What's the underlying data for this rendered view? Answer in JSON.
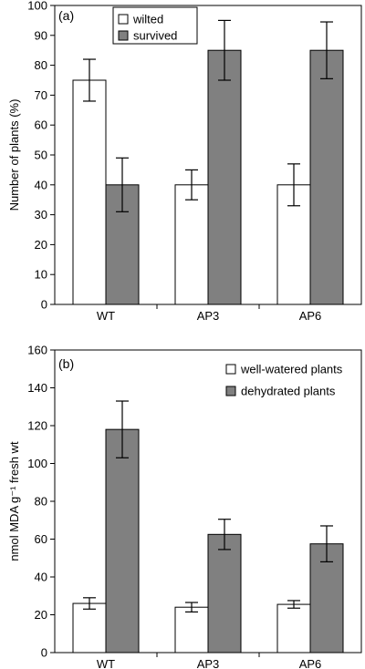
{
  "chart_data": [
    {
      "type": "bar",
      "panel_label": "(a)",
      "categories": [
        "WT",
        "AP3",
        "AP6"
      ],
      "ylabel": "Number of plants (%)",
      "ylim": [
        0,
        100
      ],
      "ytick_step": 10,
      "legend": {
        "placement": "top-center",
        "boxed": true
      },
      "grid": false,
      "series": [
        {
          "name": "wilted",
          "color": "#ffffff",
          "values": [
            75,
            40,
            40
          ],
          "errors": [
            7,
            5,
            7
          ]
        },
        {
          "name": "survived",
          "color": "#808080",
          "values": [
            40,
            85,
            85
          ],
          "errors": [
            9,
            10,
            9.5
          ]
        }
      ]
    },
    {
      "type": "bar",
      "panel_label": "(b)",
      "categories": [
        "WT",
        "AP3",
        "AP6"
      ],
      "ylabel": "nmol MDA g⁻¹ fresh wt",
      "ylim": [
        0,
        160
      ],
      "ytick_step": 20,
      "legend": {
        "placement": "top-right",
        "boxed": false
      },
      "grid": false,
      "series": [
        {
          "name": "well-watered plants",
          "color": "#ffffff",
          "values": [
            26,
            24,
            25.5
          ],
          "errors": [
            3,
            2.5,
            2
          ]
        },
        {
          "name": "dehydrated plants",
          "color": "#808080",
          "values": [
            118,
            62.5,
            57.5
          ],
          "errors": [
            15,
            8,
            9.5
          ]
        }
      ]
    }
  ]
}
